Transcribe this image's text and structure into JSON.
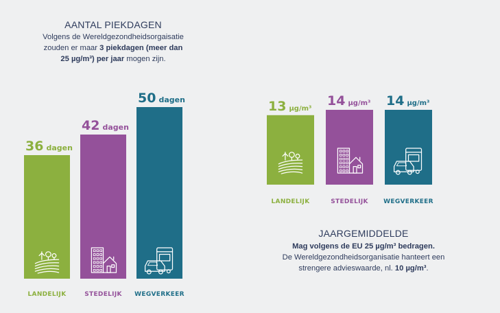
{
  "left_panel": {
    "title": "AANTAL PIEKDAGEN",
    "desc_line1": "Volgens de Wereldgezondheidsorgaisatie",
    "desc_line2_pre": "zouden er maar ",
    "desc_line2_bold": "3 piekdagen (meer dan",
    "desc_line3_bold": "25 µg/m³) per jaar",
    "desc_line3_post": " mogen zijn."
  },
  "right_panel": {
    "title": "JAARGEMIDDELDE",
    "desc_line1_bold": "Mag volgens de EU 25 µg/m³ bedragen.",
    "desc_line2": "De Wereldgezondheidsorganisatie hanteert een",
    "desc_line3_pre": "strengere advieswaarde, nl. ",
    "desc_line3_bold": "10 µg/m³",
    "desc_line3_post": "."
  },
  "colors": {
    "landelijk": "#8cb03f",
    "stedelijk": "#94519a",
    "wegverkeer": "#1f6e88"
  },
  "icons": [
    "field-icon",
    "city-icon",
    "traffic-icon"
  ],
  "chart_data": [
    {
      "type": "bar",
      "categories": [
        "LANDELIJK",
        "STEDELIJK",
        "WEGVERKEER"
      ],
      "values": [
        36,
        42,
        50
      ],
      "unit": "dagen",
      "ylim": [
        0,
        50
      ]
    },
    {
      "type": "bar",
      "categories": [
        "LANDELIJK",
        "STEDELIJK",
        "WEGVERKEER"
      ],
      "values": [
        13,
        14,
        14
      ],
      "unit": "µg/m³",
      "ylim": [
        0,
        14
      ]
    }
  ]
}
